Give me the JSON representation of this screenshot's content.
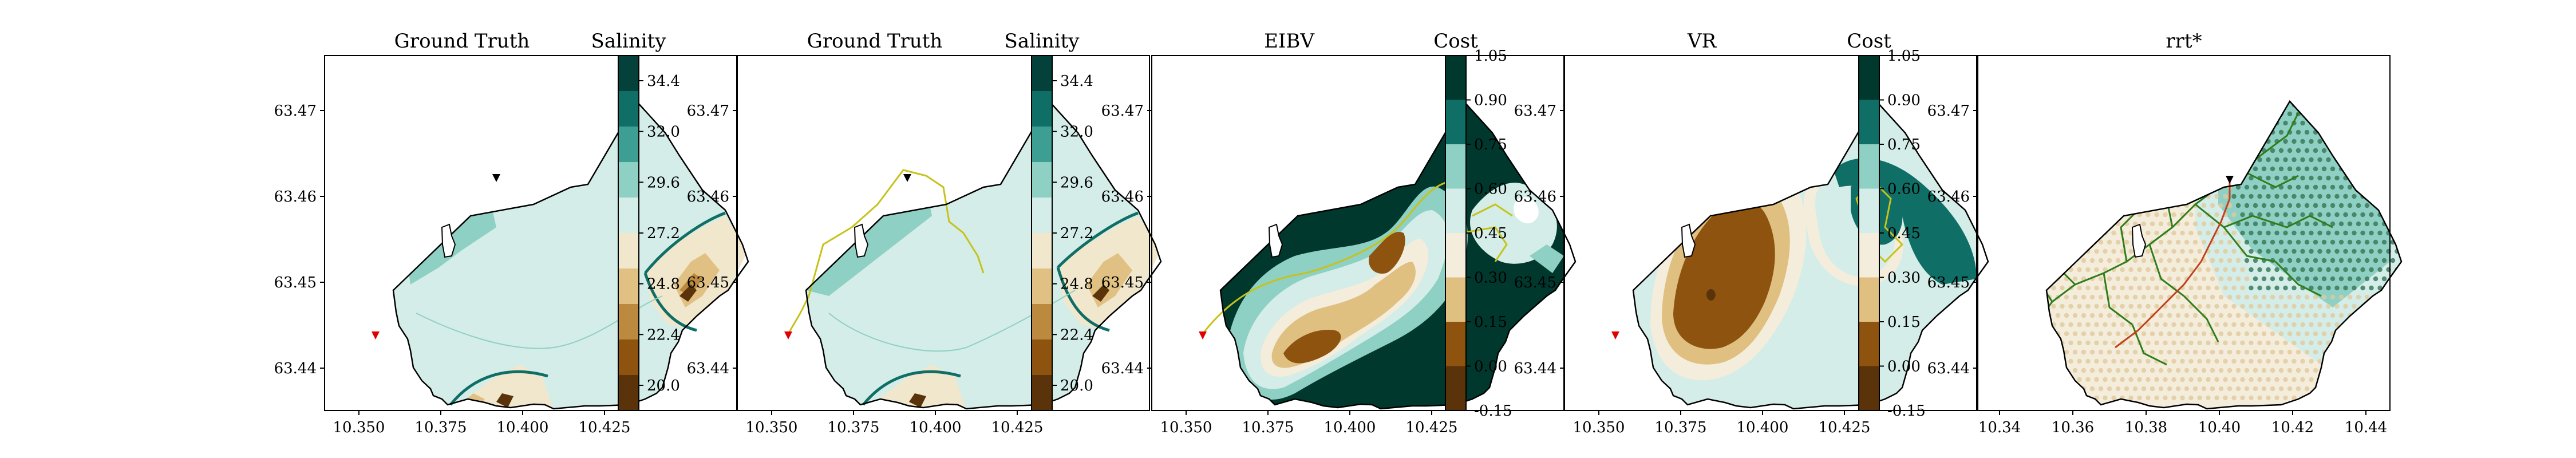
{
  "panels": [
    {
      "title": "Ground Truth",
      "xticks": [
        "10.350",
        "10.375",
        "10.400",
        "10.425"
      ],
      "yticks": [
        "63.47",
        "63.46",
        "63.45",
        "63.44"
      ],
      "colorbar": "salinity"
    },
    {
      "title": "Ground Truth",
      "xticks": [
        "10.350",
        "10.375",
        "10.400",
        "10.425"
      ],
      "yticks": [
        "63.47",
        "63.46",
        "63.45",
        "63.44"
      ],
      "colorbar": "salinity"
    },
    {
      "title": "EIBV",
      "xticks": [
        "10.350",
        "10.375",
        "10.400",
        "10.425"
      ],
      "yticks": [
        "63.47",
        "63.46",
        "63.45",
        "63.44"
      ],
      "colorbar": "cost"
    },
    {
      "title": "VR",
      "xticks": [
        "10.350",
        "10.375",
        "10.400",
        "10.425"
      ],
      "yticks": [
        "63.47",
        "63.46",
        "63.45",
        "63.44"
      ],
      "colorbar": "cost"
    },
    {
      "title": "rrt*",
      "xticks": [
        "10.34",
        "10.36",
        "10.38",
        "10.40",
        "10.42",
        "10.44"
      ],
      "yticks": [
        "63.47",
        "63.46",
        "63.45",
        "63.44"
      ],
      "colorbar": null
    }
  ],
  "colorbars": {
    "salinity": {
      "label": "Salinity",
      "ticks": [
        "34.4",
        "32.0",
        "29.6",
        "27.2",
        "24.8",
        "22.4",
        "20.0"
      ],
      "colors": [
        "#03413a",
        "#0f6e66",
        "#3d9f93",
        "#8fd0c4",
        "#d4ede8",
        "#f1e7cc",
        "#e0c183",
        "#bb8a3e",
        "#8e530f",
        "#5a330a"
      ]
    },
    "cost": {
      "label": "Cost",
      "ticks": [
        "1.05",
        "0.90",
        "0.75",
        "0.60",
        "0.45",
        "0.30",
        "0.15",
        "0.00",
        "-0.15"
      ],
      "colors": [
        "#01382e",
        "#0f6e66",
        "#8fd0c4",
        "#d4ede8",
        "#f4eddc",
        "#dfc081",
        "#8e530f",
        "#5a330a"
      ]
    }
  },
  "colors": {
    "land": "#ffffff",
    "boundary": "#000000",
    "path": "#c7c21a",
    "rrt_tree": "#2f7d1b",
    "rrt_path": "#c2401a",
    "start": "#e00000",
    "end": "#000000",
    "front": "#0f6e66"
  },
  "chart_data": [
    {
      "type": "heatmap",
      "title": "Ground Truth",
      "colorbar_label": "Salinity",
      "xlim": [
        10.335,
        10.44
      ],
      "ylim": [
        63.432,
        63.477
      ],
      "color_levels": [
        20.0,
        22.4,
        24.8,
        27.2,
        29.6,
        32.0,
        34.4
      ],
      "markers": [
        {
          "kind": "start",
          "x": 10.356,
          "y": 63.441
        },
        {
          "kind": "target",
          "x": 10.402,
          "y": 63.461
        }
      ]
    },
    {
      "type": "heatmap",
      "title": "Ground Truth",
      "colorbar_label": "Salinity",
      "xlim": [
        10.335,
        10.44
      ],
      "ylim": [
        63.432,
        63.477
      ],
      "color_levels": [
        20.0,
        22.4,
        24.8,
        27.2,
        29.6,
        32.0,
        34.4
      ],
      "markers": [
        {
          "kind": "start",
          "x": 10.356,
          "y": 63.441
        },
        {
          "kind": "target",
          "x": 10.401,
          "y": 63.461
        }
      ]
    },
    {
      "type": "heatmap",
      "title": "EIBV",
      "colorbar_label": "Cost",
      "xlim": [
        10.335,
        10.44
      ],
      "ylim": [
        63.432,
        63.477
      ],
      "color_levels": [
        -0.15,
        0.0,
        0.15,
        0.3,
        0.45,
        0.6,
        0.75,
        0.9,
        1.05
      ],
      "markers": [
        {
          "kind": "start",
          "x": 10.356,
          "y": 63.441
        }
      ]
    },
    {
      "type": "heatmap",
      "title": "VR",
      "colorbar_label": "Cost",
      "xlim": [
        10.335,
        10.44
      ],
      "ylim": [
        63.432,
        63.477
      ],
      "color_levels": [
        -0.15,
        0.0,
        0.15,
        0.3,
        0.45,
        0.6,
        0.75,
        0.9,
        1.05
      ],
      "markers": [
        {
          "kind": "start",
          "x": 10.356,
          "y": 63.441
        }
      ]
    },
    {
      "type": "scatter",
      "title": "rrt*",
      "xlim": [
        10.335,
        10.445
      ],
      "ylim": [
        63.432,
        63.477
      ],
      "markers": [
        {
          "kind": "end",
          "x": 10.404,
          "y": 63.461
        }
      ]
    }
  ]
}
